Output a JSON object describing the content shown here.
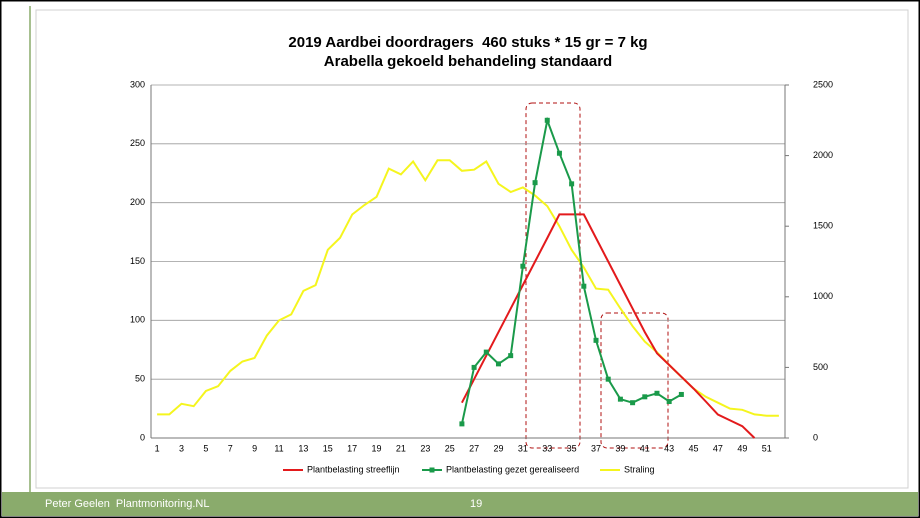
{
  "chart_data": {
    "type": "line",
    "title": [
      "2019 Aardbei doordragers  460 stuks * 15 gr = 7 kg",
      "Arabella gekoeld behandeling standaard"
    ],
    "categories": [
      "1",
      null,
      "3",
      null,
      "5",
      null,
      "7",
      null,
      "9",
      null,
      "11",
      null,
      "13",
      null,
      "15",
      null,
      "17",
      null,
      "19",
      null,
      "21",
      null,
      "23",
      null,
      "25",
      null,
      "27",
      null,
      "29",
      null,
      "31",
      null,
      "33",
      null,
      "35",
      null,
      "37",
      null,
      "39",
      null,
      "41",
      null,
      "43",
      null,
      "45",
      null,
      "47",
      null,
      "49",
      null,
      "51",
      null
    ],
    "series": [
      {
        "name": "Plantbelasting streeflijn",
        "color": "#e31a1c",
        "marker": false,
        "axis": "y",
        "values": [
          null,
          null,
          null,
          null,
          null,
          null,
          null,
          null,
          null,
          null,
          null,
          null,
          null,
          null,
          null,
          null,
          null,
          null,
          null,
          null,
          null,
          null,
          null,
          null,
          null,
          30,
          50,
          70,
          90,
          110,
          130,
          150,
          170,
          190,
          190,
          190,
          170,
          150,
          130,
          110,
          90,
          72,
          62,
          52,
          42,
          31,
          20,
          15,
          10,
          0,
          null,
          null
        ]
      },
      {
        "name": "Plantbelasting gezet gerealiseerd",
        "color": "#1a9a4a",
        "marker": true,
        "axis": "y",
        "values": [
          null,
          null,
          null,
          null,
          null,
          null,
          null,
          null,
          null,
          null,
          null,
          null,
          null,
          null,
          null,
          null,
          null,
          null,
          null,
          null,
          null,
          null,
          null,
          null,
          null,
          12,
          60,
          73,
          63,
          70,
          146,
          217,
          270,
          242,
          216,
          129,
          83,
          50,
          33,
          30,
          35,
          38,
          31,
          37,
          null,
          null,
          null,
          null,
          null,
          null,
          null,
          null
        ]
      },
      {
        "name": "Straling",
        "color": "#f5f51e",
        "marker": false,
        "axis": "y2",
        "values": [
          167,
          167,
          242,
          225,
          333,
          367,
          475,
          542,
          567,
          725,
          833,
          875,
          1042,
          1083,
          1333,
          1417,
          1583,
          1650,
          1708,
          1908,
          1867,
          1958,
          1825,
          1967,
          1967,
          1892,
          1900,
          1958,
          1800,
          1742,
          1775,
          1717,
          1642,
          1500,
          1333,
          1208,
          1058,
          1050,
          917,
          792,
          683,
          608,
          517,
          433,
          350,
          292,
          250,
          208,
          200,
          167,
          158,
          158
        ]
      }
    ],
    "ylim": [
      0,
      300
    ],
    "yticks": [
      0,
      50,
      100,
      150,
      200,
      250,
      300
    ],
    "y2lim": [
      0,
      2500
    ],
    "y2ticks": [
      0,
      500,
      1000,
      1500,
      2000,
      2500
    ],
    "grid": true,
    "legend": "bottom"
  },
  "footer": {
    "left": "Peter Geelen  Plantmonitoring.NL",
    "page": "19"
  }
}
